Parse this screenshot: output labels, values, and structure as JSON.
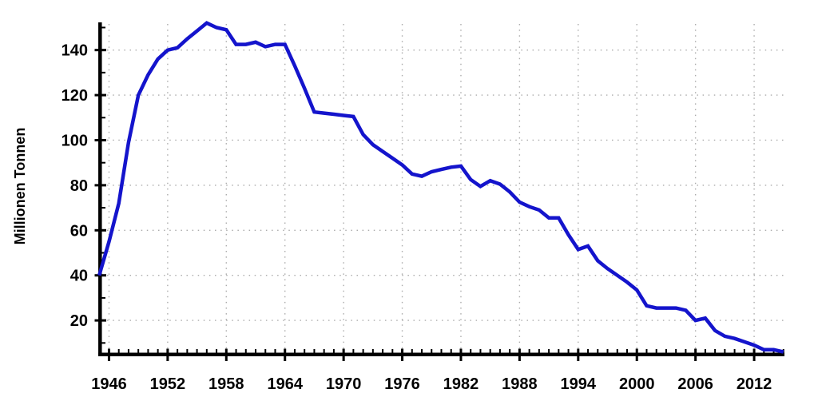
{
  "chart_data": {
    "type": "line",
    "title": "",
    "xlabel": "",
    "ylabel": "Millionen Tonnen",
    "x": [
      1945,
      1946,
      1947,
      1948,
      1949,
      1950,
      1951,
      1952,
      1953,
      1954,
      1955,
      1956,
      1957,
      1958,
      1959,
      1960,
      1961,
      1962,
      1963,
      1964,
      1965,
      1966,
      1967,
      1968,
      1969,
      1970,
      1971,
      1972,
      1973,
      1974,
      1975,
      1976,
      1977,
      1978,
      1979,
      1980,
      1981,
      1982,
      1983,
      1984,
      1985,
      1986,
      1987,
      1988,
      1989,
      1990,
      1991,
      1992,
      1993,
      1994,
      1995,
      1996,
      1997,
      1998,
      1999,
      2000,
      2001,
      2002,
      2003,
      2004,
      2005,
      2006,
      2007,
      2008,
      2009,
      2010,
      2011,
      2012,
      2013,
      2014,
      2015
    ],
    "values": [
      40,
      55,
      72,
      99,
      120,
      129,
      136,
      140,
      141,
      145,
      148.5,
      152,
      150,
      149,
      142.5,
      142.5,
      143.5,
      141.5,
      142.5,
      142.5,
      133,
      123,
      112.5,
      112,
      111.5,
      111,
      110.5,
      102.5,
      98,
      95,
      92,
      89,
      85,
      84,
      86,
      87,
      88,
      88.5,
      82.5,
      79.5,
      82,
      80.5,
      77,
      72.5,
      70.5,
      69,
      65.5,
      65.5,
      58,
      51.5,
      53,
      46.5,
      43,
      40,
      37,
      33.5,
      26.5,
      25.5,
      25.5,
      25.5,
      24.5,
      20,
      21,
      15.5,
      13,
      12,
      10.5,
      9,
      7,
      7,
      6
    ],
    "x_ticks": [
      1946,
      1952,
      1958,
      1964,
      1970,
      1976,
      1982,
      1988,
      1994,
      2000,
      2006,
      2012
    ],
    "y_ticks": [
      20,
      40,
      60,
      80,
      100,
      120,
      140
    ],
    "y_minor_ticks": [
      10,
      30,
      50,
      70,
      90,
      110,
      130,
      150
    ],
    "x_minor_step": 1,
    "xlim": [
      1944.9,
      2015.1
    ],
    "ylim": [
      4.9,
      153
    ],
    "grid": true,
    "legend": "none",
    "line_color": "#1414cc",
    "axis_color": "#000000",
    "grid_color": "#ababab",
    "label_color": "#000000"
  }
}
